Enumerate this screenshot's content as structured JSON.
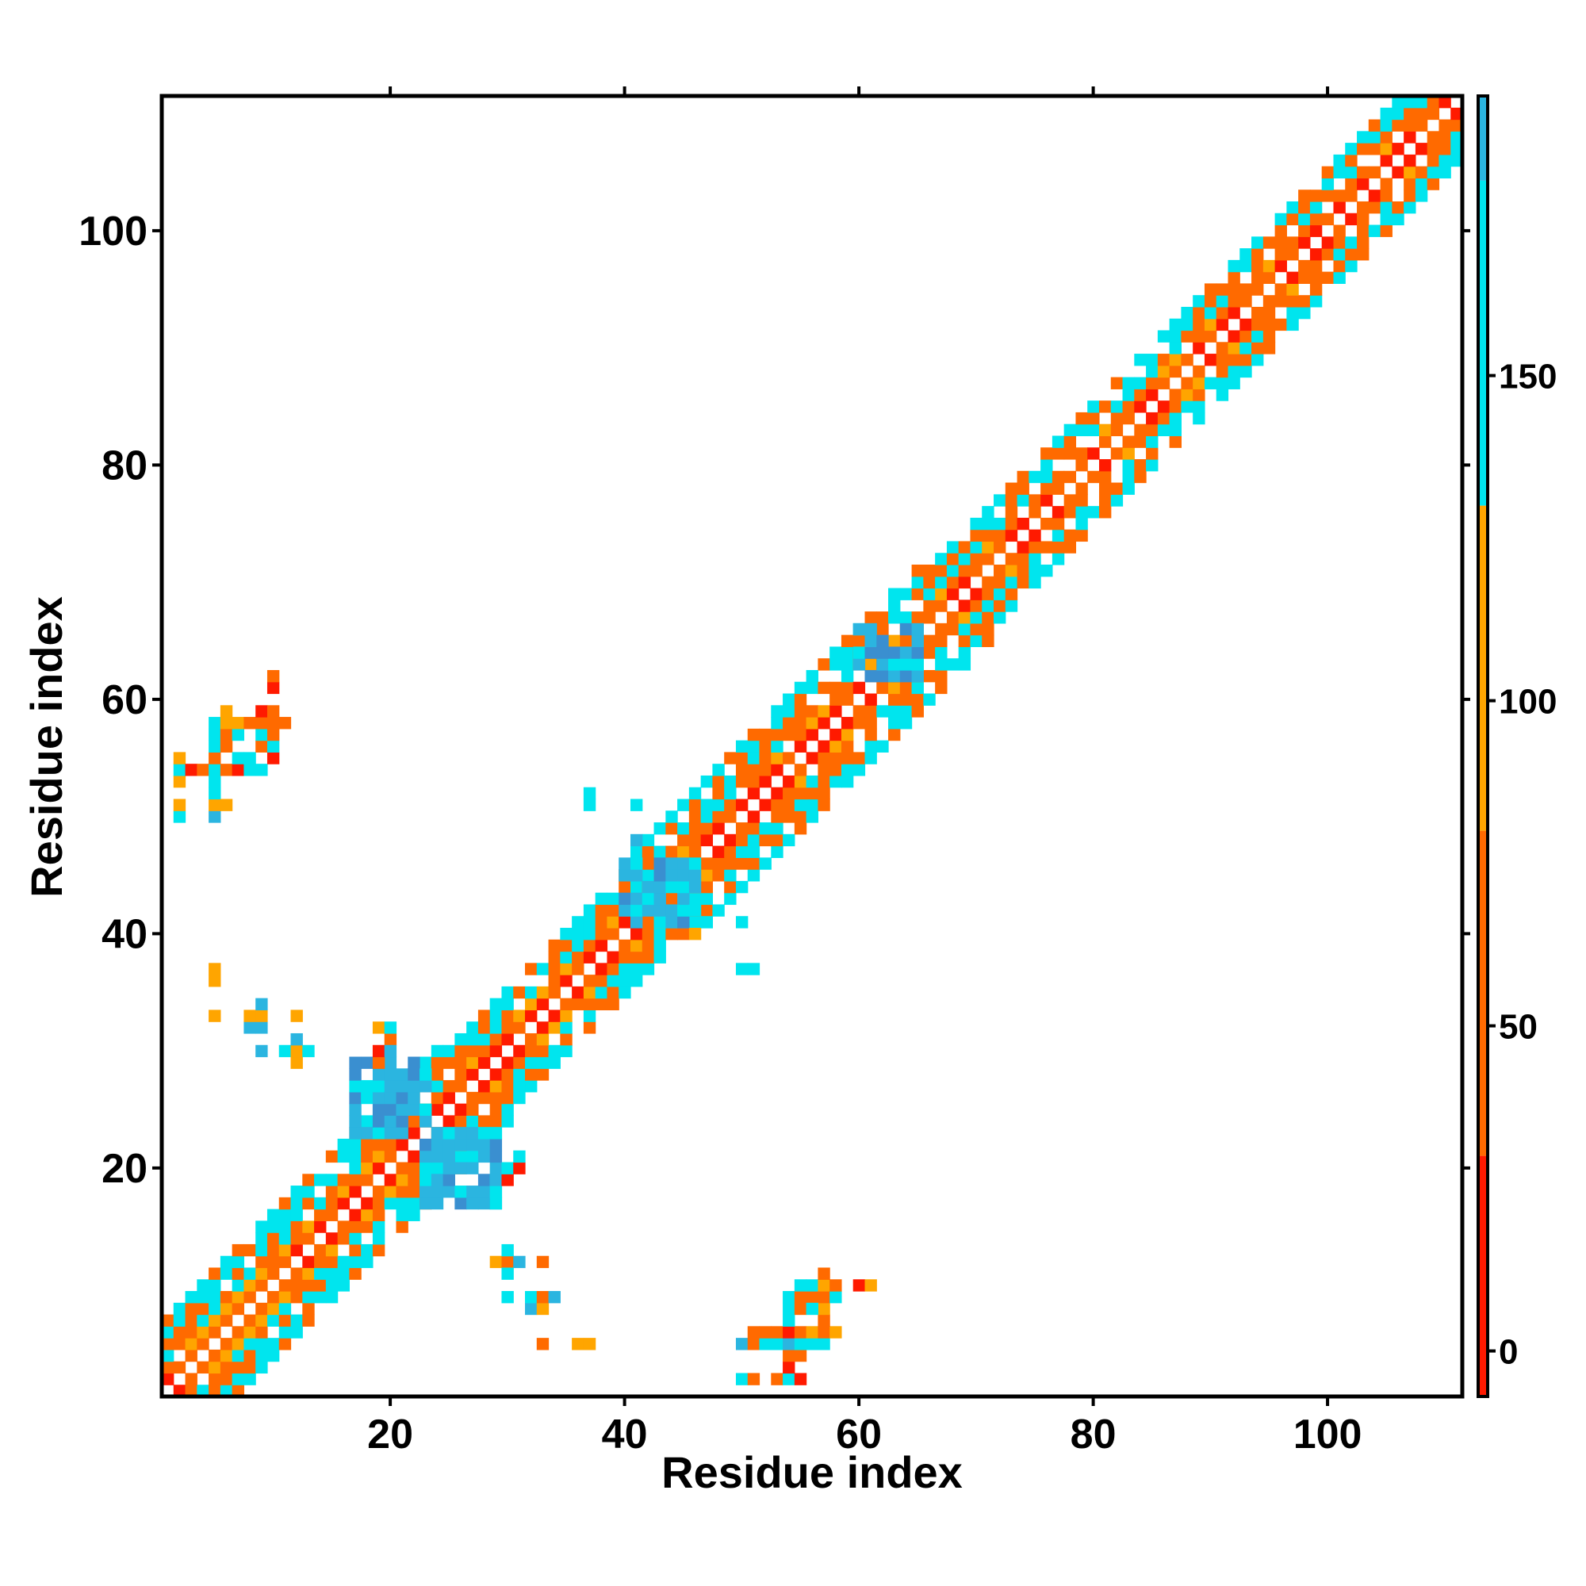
{
  "chart_data": {
    "type": "heatmap",
    "title": "",
    "xlabel": "Residue index",
    "ylabel": "Residue index",
    "xlim": [
      0.5,
      111.5
    ],
    "ylim": [
      0.5,
      111.5
    ],
    "x_ticks": [
      20,
      40,
      60,
      80,
      100
    ],
    "y_ticks": [
      20,
      40,
      60,
      80,
      100
    ],
    "colorbar": {
      "range": [
        -7,
        193
      ],
      "ticks": [
        0,
        50,
        100,
        150
      ],
      "bands": [
        {
          "from": -7,
          "to": 30,
          "color": "#ff1a00"
        },
        {
          "from": 30,
          "to": 80,
          "color": "#ff6a00"
        },
        {
          "from": 80,
          "to": 130,
          "color": "#ffa500"
        },
        {
          "from": 130,
          "to": 180,
          "color": "#00e5ee"
        },
        {
          "from": 180,
          "to": 193,
          "color": "#2bb5e0"
        }
      ]
    },
    "colors": {
      "red": "#ff1a00",
      "orange": "#ff6a00",
      "amber": "#ffa500",
      "cyan": "#00e5ee",
      "sky": "#2bb5e0",
      "steel": "#3a8fd0"
    },
    "diagonal_band": {
      "segments": [
        {
          "i_start": 1,
          "i_end": 24,
          "half_width": 6,
          "pattern": "alternating"
        },
        {
          "i_start": 25,
          "i_end": 40,
          "half_width": 5,
          "pattern": "alternating"
        },
        {
          "i_start": 41,
          "i_end": 65,
          "half_width": 6,
          "pattern": "alternating"
        },
        {
          "i_start": 66,
          "i_end": 111,
          "half_width": 5,
          "pattern": "alternating"
        }
      ]
    },
    "blocks": [
      {
        "x": [
          17,
          23
        ],
        "y": [
          23,
          29
        ],
        "value": 175,
        "note": "off-diagonal cluster"
      },
      {
        "x": [
          23,
          29
        ],
        "y": [
          17,
          23
        ],
        "value": 175,
        "note": "off-diagonal cluster"
      },
      {
        "x": [
          40,
          46
        ],
        "y": [
          41,
          46
        ],
        "value": 175
      },
      {
        "x": [
          60,
          65
        ],
        "y": [
          62,
          66
        ],
        "value": 175
      }
    ],
    "cells": [
      {
        "x": 2,
        "y": 50,
        "v": 155
      },
      {
        "x": 2,
        "y": 51,
        "v": 100
      },
      {
        "x": 2,
        "y": 53,
        "v": 100
      },
      {
        "x": 2,
        "y": 54,
        "v": 155
      },
      {
        "x": 2,
        "y": 55,
        "v": 100
      },
      {
        "x": 3,
        "y": 54,
        "v": 10
      },
      {
        "x": 4,
        "y": 54,
        "v": 50
      },
      {
        "x": 5,
        "y": 50,
        "v": 175
      },
      {
        "x": 5,
        "y": 51,
        "v": 100
      },
      {
        "x": 5,
        "y": 52,
        "v": 155
      },
      {
        "x": 5,
        "y": 53,
        "v": 155
      },
      {
        "x": 5,
        "y": 54,
        "v": 155
      },
      {
        "x": 5,
        "y": 55,
        "v": 50
      },
      {
        "x": 5,
        "y": 56,
        "v": 155
      },
      {
        "x": 5,
        "y": 57,
        "v": 155
      },
      {
        "x": 5,
        "y": 58,
        "v": 155
      },
      {
        "x": 6,
        "y": 51,
        "v": 100
      },
      {
        "x": 6,
        "y": 54,
        "v": 50
      },
      {
        "x": 6,
        "y": 56,
        "v": 50
      },
      {
        "x": 6,
        "y": 57,
        "v": 50
      },
      {
        "x": 6,
        "y": 58,
        "v": 100
      },
      {
        "x": 6,
        "y": 59,
        "v": 100
      },
      {
        "x": 7,
        "y": 54,
        "v": 10
      },
      {
        "x": 7,
        "y": 55,
        "v": 155
      },
      {
        "x": 7,
        "y": 57,
        "v": 155
      },
      {
        "x": 7,
        "y": 58,
        "v": 100
      },
      {
        "x": 8,
        "y": 54,
        "v": 155
      },
      {
        "x": 8,
        "y": 55,
        "v": 155
      },
      {
        "x": 8,
        "y": 58,
        "v": 50
      },
      {
        "x": 9,
        "y": 54,
        "v": 155
      },
      {
        "x": 9,
        "y": 56,
        "v": 50
      },
      {
        "x": 9,
        "y": 57,
        "v": 155
      },
      {
        "x": 9,
        "y": 58,
        "v": 50
      },
      {
        "x": 9,
        "y": 59,
        "v": 10
      },
      {
        "x": 10,
        "y": 55,
        "v": 10
      },
      {
        "x": 10,
        "y": 56,
        "v": 155
      },
      {
        "x": 10,
        "y": 57,
        "v": 50
      },
      {
        "x": 10,
        "y": 58,
        "v": 50
      },
      {
        "x": 10,
        "y": 59,
        "v": 50
      },
      {
        "x": 10,
        "y": 61,
        "v": 10
      },
      {
        "x": 10,
        "y": 62,
        "v": 50
      },
      {
        "x": 11,
        "y": 58,
        "v": 50
      },
      {
        "x": 5,
        "y": 33,
        "v": 100
      },
      {
        "x": 5,
        "y": 36,
        "v": 100
      },
      {
        "x": 5,
        "y": 37,
        "v": 100
      },
      {
        "x": 8,
        "y": 32,
        "v": 175
      },
      {
        "x": 8,
        "y": 33,
        "v": 100
      },
      {
        "x": 9,
        "y": 32,
        "v": 175
      },
      {
        "x": 9,
        "y": 33,
        "v": 100
      },
      {
        "x": 9,
        "y": 34,
        "v": 175
      },
      {
        "x": 9,
        "y": 30,
        "v": 175
      },
      {
        "x": 11,
        "y": 30,
        "v": 155
      },
      {
        "x": 12,
        "y": 29,
        "v": 100
      },
      {
        "x": 12,
        "y": 30,
        "v": 100
      },
      {
        "x": 12,
        "y": 31,
        "v": 175
      },
      {
        "x": 12,
        "y": 33,
        "v": 100
      },
      {
        "x": 13,
        "y": 30,
        "v": 155
      },
      {
        "x": 19,
        "y": 29,
        "v": 50
      },
      {
        "x": 19,
        "y": 30,
        "v": 10
      },
      {
        "x": 19,
        "y": 32,
        "v": 100
      },
      {
        "x": 20,
        "y": 31,
        "v": 50
      },
      {
        "x": 20,
        "y": 32,
        "v": 155
      },
      {
        "x": 20,
        "y": 30,
        "v": 175
      },
      {
        "x": 29,
        "y": 17,
        "v": 155
      },
      {
        "x": 29,
        "y": 18,
        "v": 155
      },
      {
        "x": 29,
        "y": 19,
        "v": 175
      },
      {
        "x": 30,
        "y": 19,
        "v": 10
      },
      {
        "x": 30,
        "y": 20,
        "v": 155
      },
      {
        "x": 31,
        "y": 20,
        "v": 10
      },
      {
        "x": 31,
        "y": 21,
        "v": 155
      },
      {
        "x": 29,
        "y": 12,
        "v": 100
      },
      {
        "x": 30,
        "y": 12,
        "v": 50
      },
      {
        "x": 30,
        "y": 13,
        "v": 155
      },
      {
        "x": 31,
        "y": 12,
        "v": 175
      },
      {
        "x": 30,
        "y": 11,
        "v": 155
      },
      {
        "x": 33,
        "y": 12,
        "v": 50
      },
      {
        "x": 30,
        "y": 9,
        "v": 155
      },
      {
        "x": 32,
        "y": 8,
        "v": 175
      },
      {
        "x": 32,
        "y": 9,
        "v": 155
      },
      {
        "x": 33,
        "y": 8,
        "v": 100
      },
      {
        "x": 33,
        "y": 9,
        "v": 50
      },
      {
        "x": 34,
        "y": 9,
        "v": 175
      },
      {
        "x": 33,
        "y": 5,
        "v": 50
      },
      {
        "x": 36,
        "y": 5,
        "v": 100
      },
      {
        "x": 37,
        "y": 5,
        "v": 100
      },
      {
        "x": 37,
        "y": 51,
        "v": 155
      },
      {
        "x": 37,
        "y": 52,
        "v": 155
      },
      {
        "x": 41,
        "y": 48,
        "v": 175
      },
      {
        "x": 41,
        "y": 51,
        "v": 155
      },
      {
        "x": 47,
        "y": 41,
        "v": 155
      },
      {
        "x": 50,
        "y": 41,
        "v": 155
      },
      {
        "x": 46,
        "y": 40,
        "v": 100
      },
      {
        "x": 50,
        "y": 37,
        "v": 155
      },
      {
        "x": 51,
        "y": 37,
        "v": 155
      },
      {
        "x": 50,
        "y": 2,
        "v": 155
      },
      {
        "x": 51,
        "y": 2,
        "v": 50
      },
      {
        "x": 53,
        "y": 2,
        "v": 50
      },
      {
        "x": 54,
        "y": 2,
        "v": 155
      },
      {
        "x": 55,
        "y": 2,
        "v": 10
      },
      {
        "x": 54,
        "y": 3,
        "v": 10
      },
      {
        "x": 55,
        "y": 4,
        "v": 50
      },
      {
        "x": 54,
        "y": 4,
        "v": 50
      },
      {
        "x": 50,
        "y": 5,
        "v": 175
      },
      {
        "x": 51,
        "y": 5,
        "v": 50
      },
      {
        "x": 51,
        "y": 6,
        "v": 50
      },
      {
        "x": 52,
        "y": 5,
        "v": 155
      },
      {
        "x": 52,
        "y": 6,
        "v": 50
      },
      {
        "x": 53,
        "y": 5,
        "v": 155
      },
      {
        "x": 53,
        "y": 6,
        "v": 50
      },
      {
        "x": 54,
        "y": 5,
        "v": 175
      },
      {
        "x": 54,
        "y": 6,
        "v": 10
      },
      {
        "x": 55,
        "y": 5,
        "v": 155
      },
      {
        "x": 55,
        "y": 6,
        "v": 50
      },
      {
        "x": 56,
        "y": 5,
        "v": 155
      },
      {
        "x": 56,
        "y": 6,
        "v": 100
      },
      {
        "x": 57,
        "y": 5,
        "v": 155
      },
      {
        "x": 57,
        "y": 6,
        "v": 50
      },
      {
        "x": 58,
        "y": 6,
        "v": 100
      },
      {
        "x": 54,
        "y": 7,
        "v": 155
      },
      {
        "x": 54,
        "y": 8,
        "v": 155
      },
      {
        "x": 54,
        "y": 9,
        "v": 155
      },
      {
        "x": 55,
        "y": 8,
        "v": 50
      },
      {
        "x": 55,
        "y": 9,
        "v": 50
      },
      {
        "x": 56,
        "y": 9,
        "v": 50
      },
      {
        "x": 55,
        "y": 10,
        "v": 155
      },
      {
        "x": 56,
        "y": 10,
        "v": 155
      },
      {
        "x": 57,
        "y": 7,
        "v": 50
      },
      {
        "x": 57,
        "y": 8,
        "v": 100
      },
      {
        "x": 57,
        "y": 9,
        "v": 50
      },
      {
        "x": 57,
        "y": 10,
        "v": 100
      },
      {
        "x": 57,
        "y": 11,
        "v": 50
      },
      {
        "x": 58,
        "y": 9,
        "v": 155
      },
      {
        "x": 58,
        "y": 10,
        "v": 50
      },
      {
        "x": 56,
        "y": 8,
        "v": 155
      },
      {
        "x": 60,
        "y": 10,
        "v": 10
      },
      {
        "x": 61,
        "y": 10,
        "v": 100
      }
    ]
  }
}
